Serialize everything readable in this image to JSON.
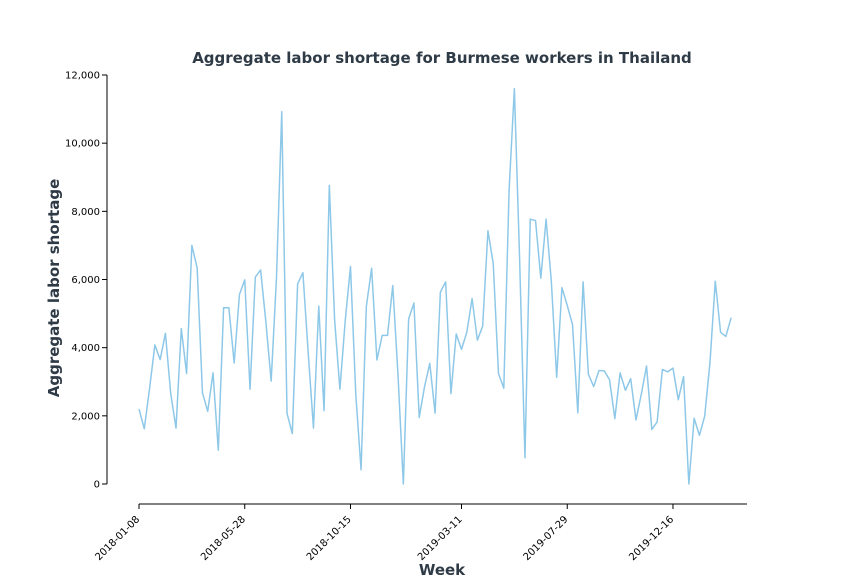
{
  "chart_data": {
    "type": "line",
    "title": "Aggregate labor shortage for Burmese workers in Thailand",
    "xlabel": "Week",
    "ylabel": "Aggregate labor shortage",
    "x_ticks": [
      "2018-01-08",
      "2018-05-28",
      "2018-10-15",
      "2019-03-11",
      "2019-07-29",
      "2019-12-16"
    ],
    "y_ticks": [
      "0",
      "2,000",
      "4,000",
      "6,000",
      "8,000",
      "10,000",
      "12,000"
    ],
    "ylim": [
      0,
      12000
    ],
    "x_start": "2018-01-08",
    "x_end": "2020-03-23",
    "grid": false,
    "legend": "none",
    "series_color": "#8ec8e8",
    "series": [
      {
        "values": [
          2200,
          1620,
          2800,
          4080,
          3650,
          4420,
          2650,
          1640,
          4560,
          3240,
          7000,
          6340,
          2680,
          2130,
          3260,
          990,
          5170,
          5170,
          3550,
          5560,
          5990,
          2780,
          6070,
          6280,
          4750,
          3020,
          6040,
          10920,
          2070,
          1480,
          5870,
          6200,
          3860,
          1640,
          5220,
          2150,
          8760,
          4810,
          2780,
          4780,
          6380,
          2640,
          420,
          5210,
          6330,
          3640,
          4360,
          4360,
          5820,
          3170,
          0,
          4840,
          5310,
          1950,
          2850,
          3540,
          2080,
          5630,
          5930,
          2650,
          4400,
          3950,
          4450,
          5440,
          4220,
          4630,
          7430,
          6470,
          3240,
          2810,
          8620,
          11600,
          6560,
          770,
          7770,
          7730,
          6040,
          7770,
          5920,
          3130,
          5760,
          5240,
          4670,
          2090,
          5930,
          3220,
          2860,
          3330,
          3320,
          3060,
          1920,
          3260,
          2750,
          3090,
          1880,
          2630,
          3460,
          1600,
          1820,
          3360,
          3290,
          3400,
          2470,
          3150,
          0,
          1930,
          1430,
          1990,
          3570,
          5950,
          4450,
          4330,
          4880
        ]
      }
    ]
  }
}
